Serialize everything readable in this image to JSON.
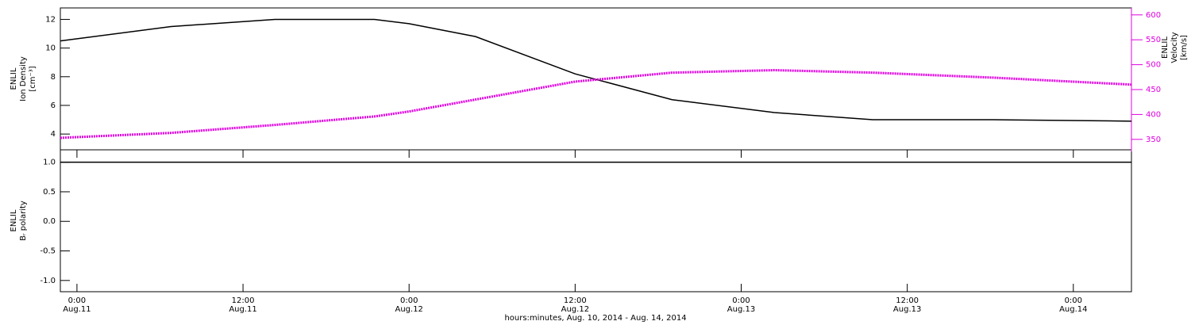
{
  "chart_data": [
    {
      "type": "line",
      "y_label": [
        "ENLIL",
        "Ion Density",
        "[cm⁻³]"
      ],
      "y2_label": [
        "ENLIL",
        "Velocity",
        "[km/s]"
      ],
      "xlim": [
        -1.2,
        76.2
      ],
      "x": [
        -1.2,
        6.8,
        14.3,
        21.5,
        24,
        28.8,
        36,
        43,
        50.4,
        57.5,
        66.2,
        76.2
      ],
      "ylim": [
        2.9,
        12.8
      ],
      "yticks": [
        4,
        6,
        8,
        10,
        12
      ],
      "y2lim": [
        329,
        614
      ],
      "y2ticks": [
        350,
        400,
        450,
        500,
        550,
        600
      ],
      "series": [
        {
          "color": "#000000",
          "values": [
            10.5,
            11.5,
            12.0,
            12.0,
            11.7,
            10.8,
            8.2,
            6.4,
            5.5,
            5.0,
            5.0,
            4.9
          ]
        },
        {
          "color": "#e000e0",
          "axis": "y2",
          "values": [
            353,
            363,
            379,
            396,
            406,
            430,
            466,
            484,
            489,
            484,
            474,
            460
          ]
        }
      ]
    },
    {
      "type": "line",
      "y_label": [
        "ENLIL",
        "Bᵣ polarity"
      ],
      "x_label": "hours:minutes, Aug. 10, 2014 - Aug. 14, 2014",
      "xlim": [
        -1.2,
        76.2
      ],
      "x": [
        -1.2,
        76.2
      ],
      "xticks": [
        {
          "value": 0,
          "label": "0:00\nAug.11"
        },
        {
          "value": 12,
          "label": "12:00\nAug.11"
        },
        {
          "value": 24,
          "label": "0:00\nAug.12"
        },
        {
          "value": 36,
          "label": "12:00\nAug.12"
        },
        {
          "value": 48,
          "label": "0:00\nAug.13"
        },
        {
          "value": 60,
          "label": "12:00\nAug.13"
        },
        {
          "value": 72,
          "label": "0:00\nAug.14"
        }
      ],
      "ylim": [
        -1.19,
        1.21
      ],
      "yticks": [
        {
          "value": -1,
          "label": "-1.0"
        },
        -0.5,
        {
          "value": 0,
          "label": "0.0"
        },
        0.5,
        {
          "value": 1,
          "label": "1.0"
        }
      ],
      "series": [
        {
          "color": "#000000",
          "values": [
            1,
            1
          ]
        }
      ]
    }
  ]
}
